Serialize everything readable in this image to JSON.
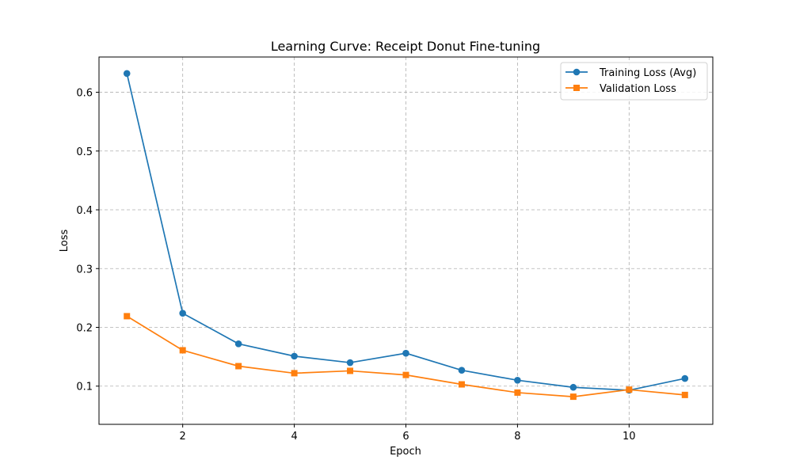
{
  "chart_data": {
    "type": "line",
    "title": "Learning Curve: Receipt Donut Fine-tuning",
    "xlabel": "Epoch",
    "ylabel": "Loss",
    "xlim": [
      0.5,
      11.5
    ],
    "ylim": [
      0.035,
      0.66
    ],
    "xticks": [
      2,
      4,
      6,
      8,
      10
    ],
    "yticks": [
      0.1,
      0.2,
      0.3,
      0.4,
      0.5,
      0.6
    ],
    "xtick_labels": [
      "2",
      "4",
      "6",
      "8",
      "10"
    ],
    "ytick_labels": [
      "0.1",
      "0.2",
      "0.3",
      "0.4",
      "0.5",
      "0.6"
    ],
    "grid": true,
    "legend_position": "top-right",
    "x": [
      1,
      2,
      3,
      4,
      5,
      6,
      7,
      8,
      9,
      10,
      11
    ],
    "series": [
      {
        "name": "Training Loss (Avg)",
        "color": "#1f77b4",
        "marker": "circle",
        "values": [
          0.632,
          0.224,
          0.172,
          0.151,
          0.14,
          0.156,
          0.127,
          0.11,
          0.098,
          0.093,
          0.113
        ]
      },
      {
        "name": "Validation Loss",
        "color": "#ff7f0e",
        "marker": "square",
        "values": [
          0.219,
          0.161,
          0.134,
          0.122,
          0.126,
          0.119,
          0.103,
          0.089,
          0.082,
          0.094,
          0.085
        ]
      }
    ]
  }
}
